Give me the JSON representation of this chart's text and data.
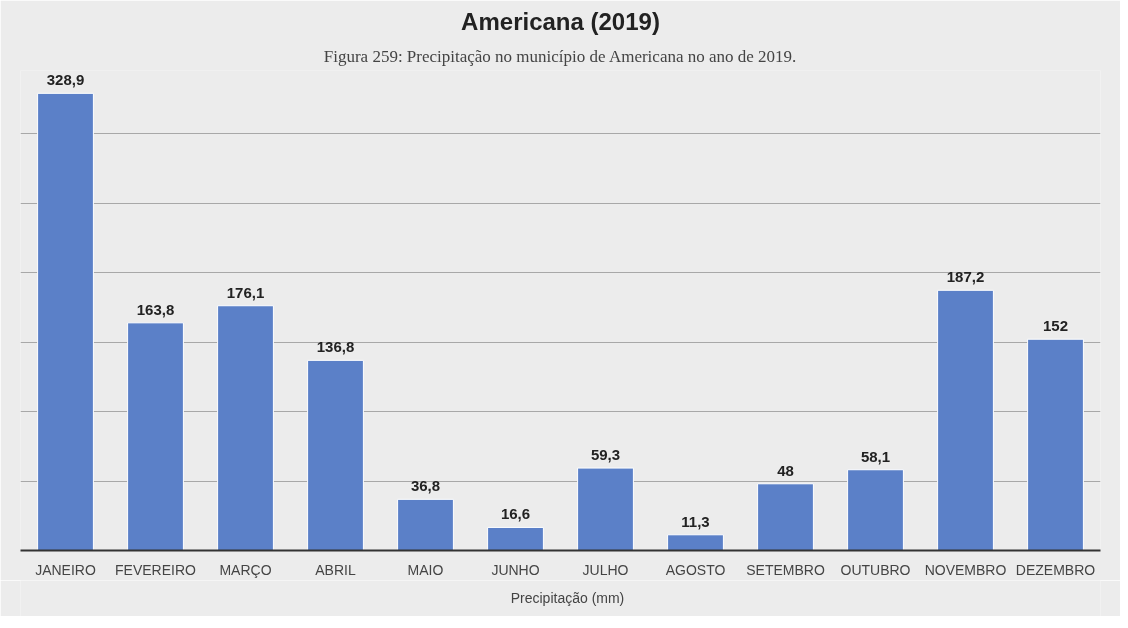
{
  "chart_data": {
    "type": "bar",
    "title": "Americana (2019)",
    "annotations": [
      "Figura 259: Precipitação no município de Americana no ano de 2019."
    ],
    "categories": [
      "JANEIRO",
      "FEVEREIRO",
      "MARÇO",
      "ABRIL",
      "MAIO",
      "JUNHO",
      "JULHO",
      "AGOSTO",
      "SETEMBRO",
      "OUTUBRO",
      "NOVEMBRO",
      "DEZEMBRO"
    ],
    "series": [
      {
        "name": "Precipitação (mm)",
        "color": "#5b80c8",
        "values": [
          328.9,
          163.8,
          176.1,
          136.8,
          36.8,
          16.6,
          59.3,
          11.3,
          48,
          58.1,
          187.2,
          152
        ],
        "value_labels": [
          "328,9",
          "163,8",
          "176,1",
          "136,8",
          "36,8",
          "16,6",
          "59,3",
          "11,3",
          "48",
          "58,1",
          "187,2",
          "152"
        ]
      }
    ],
    "tick_labels": "x",
    "grid": "y",
    "legend": "bottom"
  }
}
